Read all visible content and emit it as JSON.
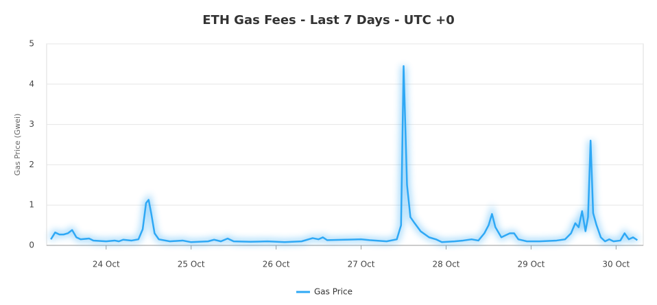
{
  "chart_data": {
    "type": "line",
    "title": "ETH Gas Fees - Last 7 Days - UTC +0",
    "ylabel": "Gas Price (Gwei)",
    "x": [
      23.35,
      23.4,
      23.45,
      23.5,
      23.55,
      23.6,
      23.65,
      23.7,
      23.8,
      23.85,
      24.0,
      24.1,
      24.15,
      24.2,
      24.3,
      24.38,
      24.43,
      24.47,
      24.5,
      24.53,
      24.57,
      24.62,
      24.75,
      24.9,
      25.0,
      25.2,
      25.27,
      25.35,
      25.43,
      25.5,
      25.7,
      25.9,
      26.1,
      26.3,
      26.43,
      26.5,
      26.55,
      26.6,
      26.8,
      27.0,
      27.1,
      27.3,
      27.42,
      27.47,
      27.5,
      27.54,
      27.58,
      27.63,
      27.7,
      27.8,
      27.88,
      27.95,
      28.1,
      28.2,
      28.3,
      28.38,
      28.45,
      28.5,
      28.54,
      28.58,
      28.65,
      28.7,
      28.75,
      28.8,
      28.85,
      28.95,
      29.1,
      29.3,
      29.4,
      29.47,
      29.52,
      29.56,
      29.6,
      29.64,
      29.67,
      29.7,
      29.73,
      29.77,
      29.82,
      29.87,
      29.92,
      29.97,
      30.05,
      30.1,
      30.15,
      30.2,
      30.25
    ],
    "series": [
      {
        "name": "Gas Price",
        "color": "#2ea8f5",
        "values": [
          0.15,
          0.32,
          0.27,
          0.27,
          0.3,
          0.38,
          0.2,
          0.15,
          0.17,
          0.12,
          0.1,
          0.12,
          0.1,
          0.14,
          0.12,
          0.15,
          0.4,
          1.05,
          1.13,
          0.8,
          0.3,
          0.15,
          0.1,
          0.12,
          0.08,
          0.1,
          0.14,
          0.1,
          0.17,
          0.1,
          0.09,
          0.1,
          0.08,
          0.1,
          0.18,
          0.15,
          0.2,
          0.13,
          0.14,
          0.15,
          0.13,
          0.1,
          0.15,
          0.5,
          4.45,
          1.5,
          0.7,
          0.55,
          0.35,
          0.2,
          0.15,
          0.08,
          0.1,
          0.12,
          0.15,
          0.12,
          0.3,
          0.5,
          0.78,
          0.45,
          0.2,
          0.25,
          0.3,
          0.3,
          0.15,
          0.1,
          0.1,
          0.12,
          0.15,
          0.3,
          0.55,
          0.45,
          0.85,
          0.35,
          0.7,
          2.6,
          0.8,
          0.5,
          0.2,
          0.1,
          0.15,
          0.1,
          0.12,
          0.3,
          0.15,
          0.2,
          0.13
        ]
      }
    ],
    "xlim": [
      23.3,
      30.32
    ],
    "xticks": [
      {
        "value": 24,
        "label": "24 Oct"
      },
      {
        "value": 25,
        "label": "25 Oct"
      },
      {
        "value": 26,
        "label": "26 Oct"
      },
      {
        "value": 27,
        "label": "27 Oct"
      },
      {
        "value": 28,
        "label": "28 Oct"
      },
      {
        "value": 29,
        "label": "29 Oct"
      },
      {
        "value": 30,
        "label": "30 Oct"
      }
    ],
    "ylim": [
      0,
      5
    ],
    "yticks": [
      0,
      1,
      2,
      3,
      4,
      5
    ],
    "grid": true,
    "legend": "bottom"
  }
}
